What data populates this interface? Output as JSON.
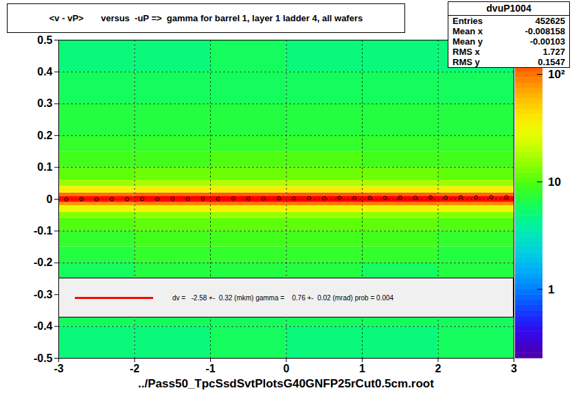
{
  "chart_data": {
    "type": "heatmap",
    "title": "<v - vP>       versus  -uP =>  gamma for barrel 1, layer 1 ladder 4, all wafers",
    "xlabel": "../Pass50_TpcSsdSvtPlotsG40GNFP25rCut0.5cm.root",
    "xlim": [
      -3,
      3
    ],
    "ylim": [
      -0.5,
      0.5
    ],
    "xticks": [
      -3,
      -2,
      -1,
      0,
      1,
      2,
      3
    ],
    "yticks": [
      -0.5,
      -0.4,
      -0.3,
      -0.2,
      -0.1,
      0,
      0.1,
      0.2,
      0.3,
      0.4,
      0.5
    ],
    "grid": true,
    "x_bins": [
      -3,
      -2,
      -1,
      0,
      1,
      2,
      3
    ],
    "y_bins": [
      -0.5,
      -0.4,
      -0.3,
      -0.2,
      -0.15,
      -0.1,
      -0.06,
      -0.04,
      -0.02,
      -0.01,
      0,
      0.01,
      0.02,
      0.04,
      0.06,
      0.1,
      0.15,
      0.2,
      0.3,
      0.4,
      0.5
    ],
    "z": [
      [
        5,
        5,
        6,
        5,
        5,
        6
      ],
      [
        6,
        6,
        6,
        6,
        6,
        6
      ],
      [
        6,
        7,
        7,
        7,
        6,
        7
      ],
      [
        7,
        8,
        8,
        8,
        8,
        7
      ],
      [
        8,
        9,
        9,
        9,
        9,
        8
      ],
      [
        10,
        11,
        11,
        11,
        11,
        10
      ],
      [
        14,
        15,
        16,
        16,
        15,
        14
      ],
      [
        30,
        32,
        34,
        34,
        33,
        31
      ],
      [
        80,
        90,
        95,
        95,
        92,
        85
      ],
      [
        180,
        200,
        210,
        210,
        205,
        190
      ],
      [
        190,
        210,
        220,
        220,
        215,
        200
      ],
      [
        100,
        110,
        115,
        118,
        115,
        108
      ],
      [
        35,
        37,
        38,
        39,
        38,
        36
      ],
      [
        16,
        17,
        18,
        18,
        17,
        16
      ],
      [
        11,
        12,
        12,
        12,
        12,
        11
      ],
      [
        9,
        9,
        10,
        10,
        9,
        9
      ],
      [
        8,
        8,
        8,
        8,
        8,
        8
      ],
      [
        7,
        7,
        7,
        7,
        7,
        7
      ],
      [
        6,
        6,
        6,
        6,
        6,
        6
      ],
      [
        5,
        5,
        6,
        5,
        5,
        5
      ]
    ],
    "colorbar": {
      "log": true,
      "range": [
        0.23,
        210
      ],
      "ticks": [
        1,
        10,
        {
          "value": 100,
          "label": "10²"
        }
      ]
    },
    "profile": {
      "color": "#000000",
      "marker": "circle",
      "x": [
        -2.9,
        -2.7,
        -2.5,
        -2.3,
        -2.1,
        -1.9,
        -1.7,
        -1.5,
        -1.3,
        -1.1,
        -0.9,
        -0.7,
        -0.5,
        -0.3,
        -0.1,
        0.1,
        0.3,
        0.5,
        0.7,
        0.9,
        1.1,
        1.3,
        1.5,
        1.7,
        1.9,
        2.1,
        2.3,
        2.5,
        2.7,
        2.9
      ],
      "values": [
        -0.001,
        0.0,
        -0.0005,
        0.0005,
        0.0,
        0.001,
        0.0005,
        0.0015,
        0.001,
        0.002,
        0.0015,
        0.0025,
        0.002,
        0.002,
        0.003,
        0.0025,
        0.0035,
        0.003,
        0.004,
        0.0035,
        0.0045,
        0.004,
        0.005,
        0.0045,
        0.0055,
        0.005,
        0.006,
        0.0055,
        0.0065,
        0.006
      ]
    },
    "fit": {
      "color": "#ff0000",
      "line_style": "solid",
      "x": [
        -3,
        3
      ],
      "values": [
        -0.0003,
        0.0043
      ],
      "label": "dv =   -2.58 +-  0.32 (mkm) gamma =    0.76 +-  0.02 (mrad) prob = 0.004"
    },
    "stats": {
      "title": "dvuP1004",
      "rows": [
        {
          "label": "Entries",
          "value": 452625
        },
        {
          "label": "Mean x",
          "value": -0.008158
        },
        {
          "label": "Mean y",
          "value": -0.00103
        },
        {
          "label": "RMS x",
          "value": 1.727
        },
        {
          "label": "RMS y",
          "value": 0.1547
        }
      ]
    }
  }
}
